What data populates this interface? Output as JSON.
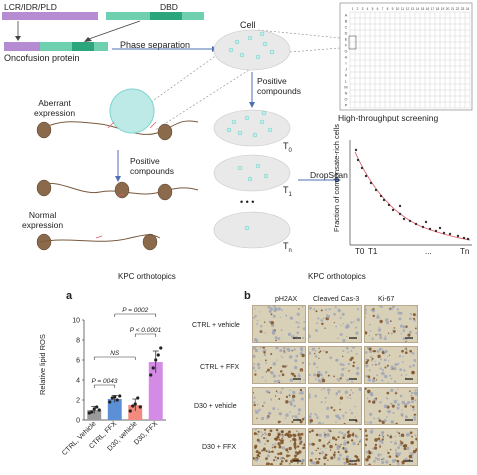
{
  "figure": {
    "top": {
      "domain_label": "LCR/IDR/PLD",
      "dbd_label": "DBD",
      "oncofusion_label": "Oncofusion protein",
      "phase_sep_label": "Phase separation",
      "cell_label": "Cell",
      "positive_compounds_label_right": "Positive\ncompounds",
      "hts_label": "High-throughput screening",
      "aberrant_label": "Aberrant\nexpression",
      "positive_compounds_label_left": "Positive\ncompounds",
      "normal_label": "Normal\nexpression",
      "dropscan_label": "DropScan",
      "t0": "T",
      "t0_sub": "0",
      "t1": "T",
      "t1_sub": "1",
      "tn": "T",
      "tn_sub": "n",
      "ellipsis": "• • •",
      "scatter_ylabel": "Fraction of condensate-rich cells",
      "scatter_x_ticks": [
        "T0",
        "T1",
        "...",
        "Tn"
      ],
      "plate_cols": [
        "1",
        "2",
        "3",
        "4",
        "5",
        "6",
        "7",
        "8",
        "9",
        "10",
        "11",
        "12",
        "13",
        "14",
        "15",
        "16",
        "17",
        "18",
        "19",
        "20",
        "21",
        "22",
        "23",
        "24"
      ],
      "plate_rows": [
        "A",
        "B",
        "C",
        "D",
        "E",
        "F",
        "G",
        "H",
        "I",
        "J",
        "K",
        "L",
        "M",
        "N",
        "O",
        "P"
      ]
    },
    "panel_a": {
      "letter": "a",
      "title": "KPC orthotopics",
      "ylabel": "Relative lipid ROS",
      "p1": "P = 0002",
      "p2": "P < 0.0001",
      "ns": "NS",
      "p3": "P = 0043"
    },
    "panel_b": {
      "letter": "b",
      "title": "KPC orthotopics",
      "col_headers": [
        "pH2AX",
        "Cleaved Cas-3",
        "Ki-67"
      ],
      "row_labels": [
        "CTRL + vehicle",
        "CTRL + FFX",
        "D30 + vehicle",
        "D30 + FFX"
      ]
    },
    "colors": {
      "purple_bar": "#b58bd1",
      "green_bar": "#56c2a4",
      "dark_green": "#2aa57c",
      "ellipse_fill": "#e9e9e9",
      "arrow_blue": "#4d6fb3",
      "condensate": "#7fd6d0",
      "red_curve": "#e05b6a"
    }
  },
  "chart_data": {
    "type": "bar",
    "title": "KPC orthotopics",
    "xlabel": "",
    "ylabel": "Relative lipid ROS",
    "categories": [
      "CTRL, Vehicle",
      "CTRL, FFX",
      "D30, vehicle",
      "D30, FFX"
    ],
    "values": [
      1.0,
      2.1,
      1.5,
      5.8
    ],
    "errors": [
      0.35,
      0.35,
      0.6,
      1.1
    ],
    "points": [
      [
        0.7,
        0.8,
        1.1,
        1.3,
        1.0
      ],
      [
        1.8,
        2.2,
        2.3,
        2.0,
        2.4
      ],
      [
        0.9,
        1.4,
        1.6,
        2.2,
        1.3
      ],
      [
        4.5,
        5.2,
        6.0,
        6.5,
        7.2
      ]
    ],
    "bar_colors": [
      "#9a9a9a",
      "#5b8fd6",
      "#f28b7d",
      "#d48be6"
    ],
    "ylim": [
      0,
      10
    ],
    "yticks": [
      0,
      2,
      4,
      6,
      8,
      10
    ],
    "annotations": [
      "P = 0002",
      "P < 0.0001",
      "NS",
      "P = 0043"
    ]
  }
}
